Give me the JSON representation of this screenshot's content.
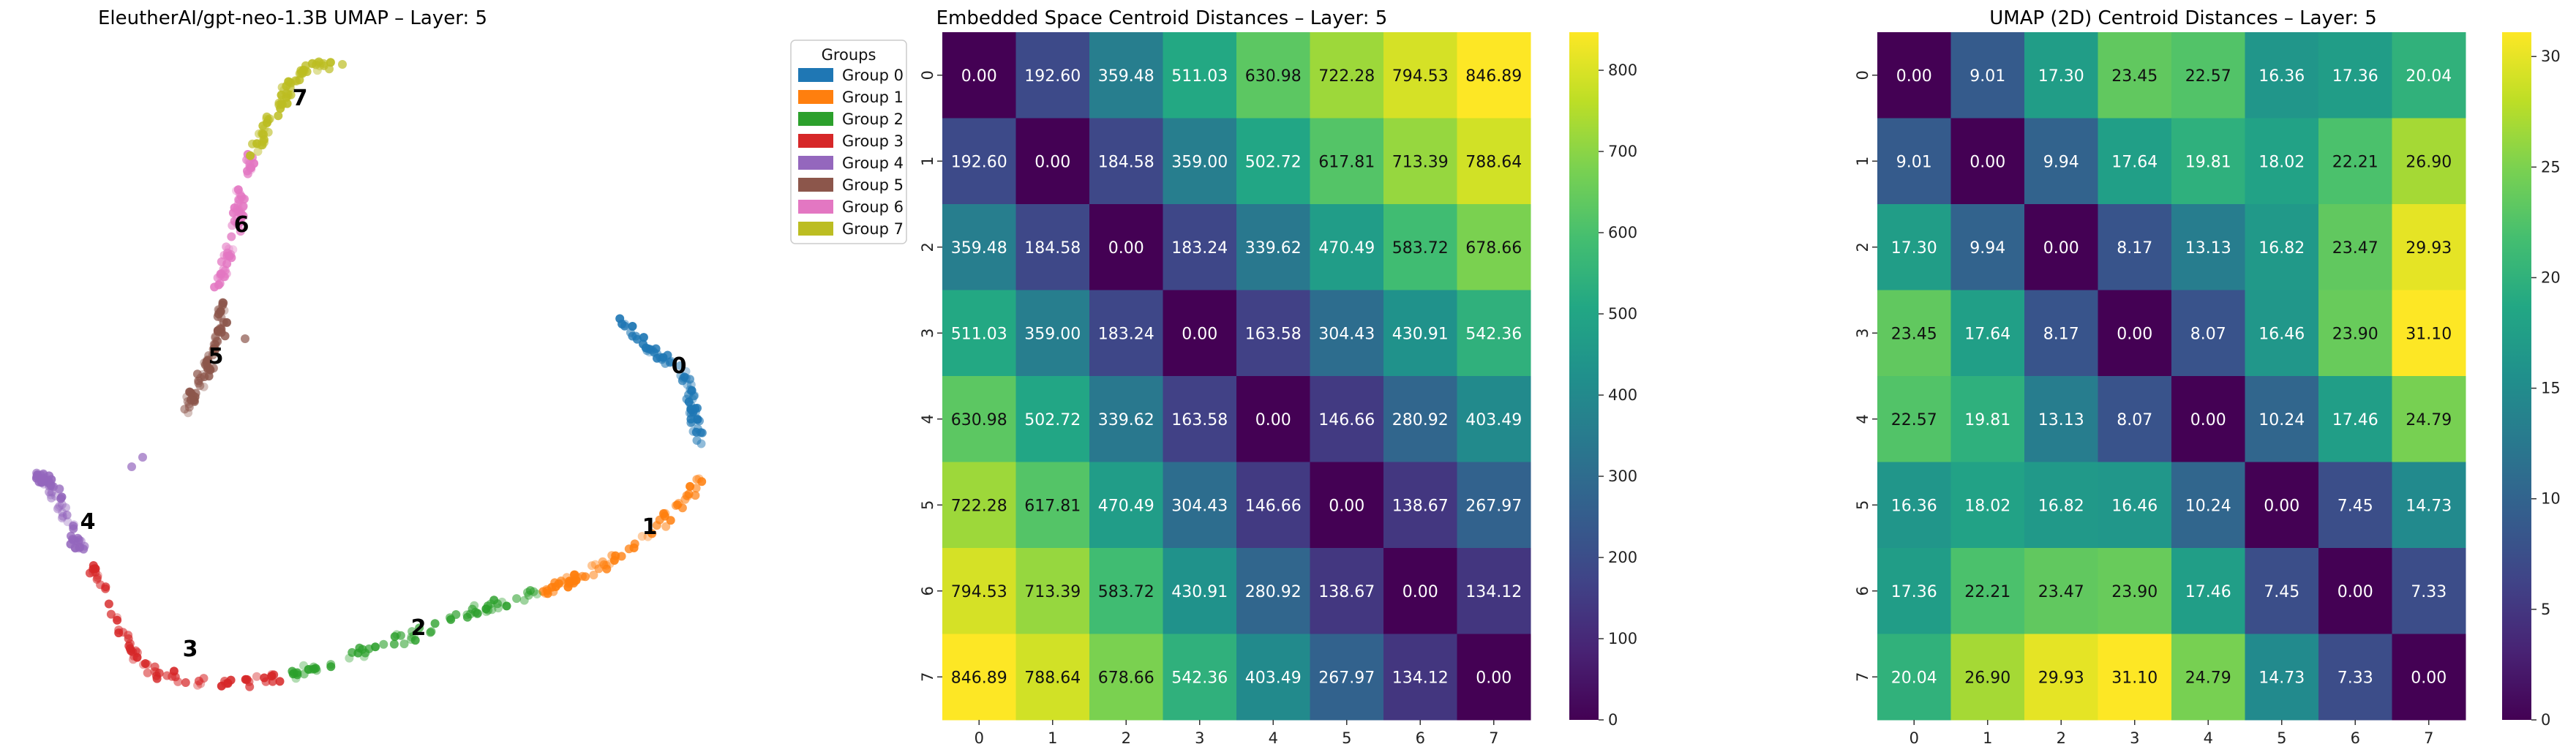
{
  "chart_data": [
    {
      "type": "scatter",
      "title": "EleutherAI/gpt-neo-1.3B UMAP – Layer: 5",
      "legend": {
        "title": "Groups",
        "placement": "right",
        "entries": [
          "Group 0",
          "Group 1",
          "Group 2",
          "Group 3",
          "Group 4",
          "Group 5",
          "Group 6",
          "Group 7"
        ]
      },
      "cluster_labels": [
        "0",
        "1",
        "2",
        "3",
        "4",
        "5",
        "6",
        "7"
      ],
      "colors": [
        "#1f77b4",
        "#ff7f0e",
        "#2ca02c",
        "#d62728",
        "#9467bd",
        "#8c564b",
        "#e377c2",
        "#bcbd22"
      ]
    },
    {
      "type": "heatmap",
      "title": "Embedded Space Centroid Distances – Layer: 5",
      "x_ticks": [
        "0",
        "1",
        "2",
        "3",
        "4",
        "5",
        "6",
        "7"
      ],
      "y_ticks": [
        "0",
        "1",
        "2",
        "3",
        "4",
        "5",
        "6",
        "7"
      ],
      "colormap": "viridis",
      "vmin": 0,
      "vmax": 846.89,
      "colorbar_ticks": [
        0,
        100,
        200,
        300,
        400,
        500,
        600,
        700,
        800
      ],
      "values": [
        [
          0.0,
          192.6,
          359.48,
          511.03,
          630.98,
          722.28,
          794.53,
          846.89
        ],
        [
          192.6,
          0.0,
          184.58,
          359.0,
          502.72,
          617.81,
          713.39,
          788.64
        ],
        [
          359.48,
          184.58,
          0.0,
          183.24,
          339.62,
          470.49,
          583.72,
          678.66
        ],
        [
          511.03,
          359.0,
          183.24,
          0.0,
          163.58,
          304.43,
          430.91,
          542.36
        ],
        [
          630.98,
          502.72,
          339.62,
          163.58,
          0.0,
          146.66,
          280.92,
          403.49
        ],
        [
          722.28,
          617.81,
          470.49,
          304.43,
          146.66,
          0.0,
          138.67,
          267.97
        ],
        [
          794.53,
          713.39,
          583.72,
          430.91,
          280.92,
          138.67,
          0.0,
          134.12
        ],
        [
          846.89,
          788.64,
          678.66,
          542.36,
          403.49,
          267.97,
          134.12,
          0.0
        ]
      ]
    },
    {
      "type": "heatmap",
      "title": "UMAP (2D) Centroid Distances – Layer: 5",
      "x_ticks": [
        "0",
        "1",
        "2",
        "3",
        "4",
        "5",
        "6",
        "7"
      ],
      "y_ticks": [
        "0",
        "1",
        "2",
        "3",
        "4",
        "5",
        "6",
        "7"
      ],
      "colormap": "viridis",
      "vmin": 0,
      "vmax": 31.1,
      "colorbar_ticks": [
        0,
        5,
        10,
        15,
        20,
        25,
        30
      ],
      "values": [
        [
          0.0,
          9.01,
          17.3,
          23.45,
          22.57,
          16.36,
          17.36,
          20.04
        ],
        [
          9.01,
          0.0,
          9.94,
          17.64,
          19.81,
          18.02,
          22.21,
          26.9
        ],
        [
          17.3,
          9.94,
          0.0,
          8.17,
          13.13,
          16.82,
          23.47,
          29.93
        ],
        [
          23.45,
          17.64,
          8.17,
          0.0,
          8.07,
          16.46,
          23.9,
          31.1
        ],
        [
          22.57,
          19.81,
          13.13,
          8.07,
          0.0,
          10.24,
          17.46,
          24.79
        ],
        [
          16.36,
          18.02,
          16.82,
          16.46,
          10.24,
          0.0,
          7.45,
          14.73
        ],
        [
          17.36,
          22.21,
          23.47,
          23.9,
          17.46,
          7.45,
          0.0,
          7.33
        ],
        [
          20.04,
          26.9,
          29.93,
          31.1,
          24.79,
          14.73,
          7.33,
          0.0
        ]
      ]
    }
  ]
}
